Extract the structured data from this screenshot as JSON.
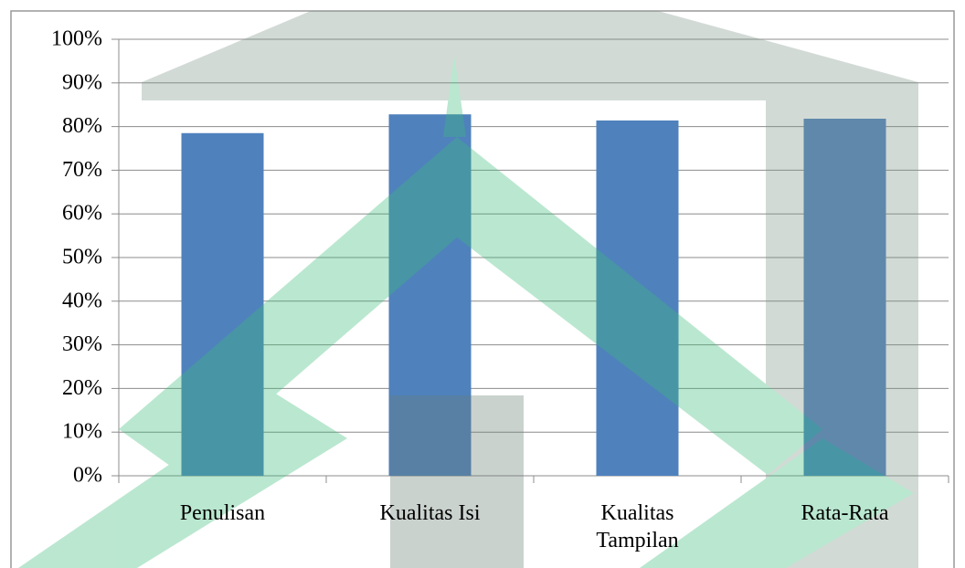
{
  "chart_data": {
    "type": "bar",
    "categories": [
      "Penulisan",
      "Kualitas Isi",
      "Kualitas Tampilan",
      "Rata-Rata"
    ],
    "values": [
      78.5,
      82.8,
      81.4,
      81.8
    ],
    "color": "#4f81bd",
    "ylim": [
      0,
      100
    ],
    "yticks": [
      {
        "value": 0,
        "label": "0%"
      },
      {
        "value": 10,
        "label": "10%"
      },
      {
        "value": 20,
        "label": "20%"
      },
      {
        "value": 30,
        "label": "30%"
      },
      {
        "value": 40,
        "label": "40%"
      },
      {
        "value": 50,
        "label": "50%"
      },
      {
        "value": 60,
        "label": "60%"
      },
      {
        "value": 70,
        "label": "70%"
      },
      {
        "value": 80,
        "label": "80%"
      },
      {
        "value": 90,
        "label": "90%"
      },
      {
        "value": 100,
        "label": "100%"
      }
    ],
    "grid": true
  }
}
